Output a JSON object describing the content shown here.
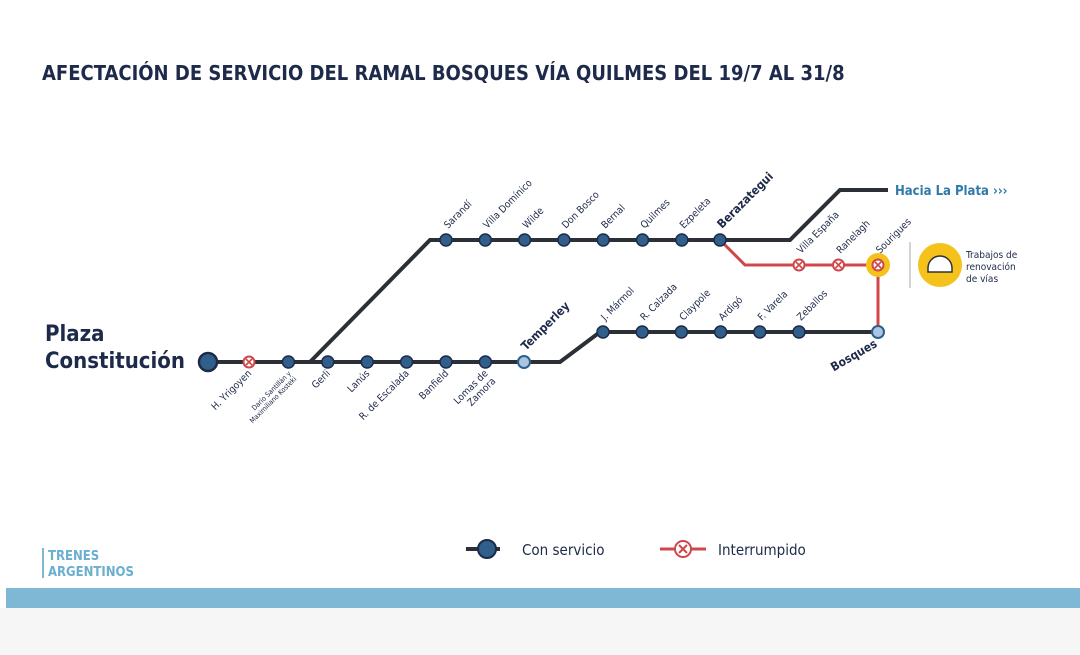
{
  "title": "AFECTACIÓN DE SERVICIO DEL RAMAL BOSQUES VÍA QUILMES DEL 19/7 AL 31/8",
  "origin": [
    "Plaza",
    "Constitución"
  ],
  "trunk_stations": [
    [
      "H. Yrigoyen"
    ],
    [
      "Darío Santillán y",
      "Maximiliano Kosteki"
    ],
    [
      "Gerli"
    ],
    [
      "Lanús"
    ],
    [
      "R. de Escalada"
    ],
    [
      "Banfield"
    ],
    [
      "Lomas de",
      "Zamora"
    ]
  ],
  "junction_south": "Temperley",
  "upper_stations": [
    "Sarandí",
    "Villa Domínico",
    "Wilde",
    "Don Bosco",
    "Bernal",
    "Quilmes",
    "Ezpeleta"
  ],
  "junction_upper": "Berazategui",
  "interrupted_stations": [
    "Villa España",
    "Ranelagh",
    "Sourigues"
  ],
  "south_stations": [
    "J. Mármol",
    "R. Calzada",
    "Claypole",
    "Ardigó",
    "F. Varela",
    "Zeballos"
  ],
  "terminal": "Bosques",
  "destination": "Hacia La Plata ›››",
  "works_note": [
    "Trabajos de",
    "renovación",
    "de vías"
  ],
  "legend": {
    "service": "Con servicio",
    "interrupted": "Interrumpido"
  },
  "brand": [
    "TRENES",
    "ARGENTINOS"
  ]
}
